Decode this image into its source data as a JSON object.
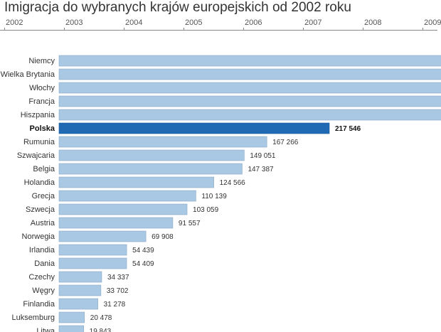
{
  "title": "Imigracja do wybranych krajów europejskich od 2002 roku",
  "timeline": {
    "years": [
      "2002",
      "2003",
      "2004",
      "2005",
      "2006",
      "2007",
      "2008",
      "2009"
    ]
  },
  "chart_data": {
    "type": "bar",
    "orientation": "horizontal",
    "title": "Imigracja do wybranych krajów europejskich od 2002 roku",
    "xlabel": "",
    "ylabel": "",
    "highlight": "Polska",
    "colors": {
      "bar": "#a9c8e4",
      "highlight": "#1f6ab3"
    },
    "categories": [
      "Niemcy",
      "Wielka Brytania",
      "Włochy",
      "Francja",
      "Hiszpania",
      "Polska",
      "Rumunia",
      "Szwajcaria",
      "Belgia",
      "Holandia",
      "Grecja",
      "Szwecja",
      "Austria",
      "Norwegia",
      "Irlandia",
      "Dania",
      "Czechy",
      "Węgry",
      "Finlandia",
      "Luksemburg",
      "Litwa"
    ],
    "values": [
      null,
      null,
      null,
      null,
      null,
      217546,
      167266,
      149051,
      147387,
      124566,
      110139,
      103059,
      91557,
      69908,
      54439,
      54409,
      34337,
      33702,
      31278,
      20478,
      19843
    ],
    "value_labels": [
      "",
      "",
      "",
      "",
      "",
      "217 546",
      "167 266",
      "149 051",
      "147 387",
      "124 566",
      "110 139",
      "103 059",
      "91 557",
      "69 908",
      "54 439",
      "54 409",
      "34 337",
      "33 702",
      "31 278",
      "20 478",
      "19 843"
    ]
  }
}
